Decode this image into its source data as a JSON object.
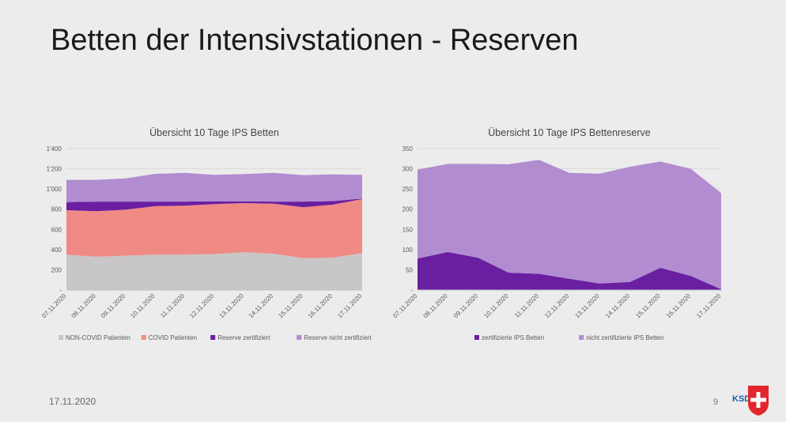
{
  "slide": {
    "title": "Betten der Intensivstationen - Reserven",
    "date": "17.11.2020",
    "page_number": "9",
    "logo_text": "KSDC"
  },
  "colors": {
    "non_covid": "#c9c6c7",
    "covid": "#f08a85",
    "reserve_zert": "#6a1fa1",
    "reserve_nicht": "#b28cd0",
    "grid": "#d9d9d9",
    "axis_text": "#595959"
  },
  "chart_data": [
    {
      "type": "area",
      "stacked": true,
      "title": "Übersicht 10 Tage IPS Betten",
      "xlabel": "",
      "ylabel": "",
      "ylim": [
        0,
        1400
      ],
      "yticks": [
        0,
        200,
        400,
        600,
        800,
        1000,
        1200,
        1400
      ],
      "ytick_labels": [
        "-",
        "200",
        "400",
        "600",
        "800",
        "1'000",
        "1'200",
        "1'400"
      ],
      "grid": true,
      "legend_position": "bottom",
      "categories": [
        "07.11.2020",
        "08.11.2020",
        "09.11.2020",
        "10.11.2020",
        "11.11.2020",
        "12.11.2020",
        "13.11.2020",
        "14.11.2020",
        "15.11.2020",
        "16.11.2020",
        "17.11.2020"
      ],
      "series": [
        {
          "name": "NON-COVID Patienten",
          "color": "#c9c6c7",
          "values": [
            350,
            330,
            340,
            350,
            350,
            355,
            375,
            360,
            315,
            320,
            365
          ]
        },
        {
          "name": "COVID Patienten",
          "color": "#f08a85",
          "values": [
            440,
            450,
            455,
            480,
            485,
            495,
            485,
            495,
            505,
            525,
            535
          ]
        },
        {
          "name": "Reserve zertifiziert",
          "color": "#6a1fa1",
          "values": [
            80,
            95,
            80,
            45,
            40,
            28,
            18,
            20,
            55,
            35,
            5
          ]
        },
        {
          "name": "Reserve nicht zertifiziert",
          "color": "#b28cd0",
          "values": [
            220,
            215,
            230,
            275,
            285,
            262,
            270,
            285,
            262,
            265,
            235
          ]
        }
      ]
    },
    {
      "type": "area",
      "stacked": true,
      "title": "Übersicht 10 Tage IPS Bettenreserve",
      "xlabel": "",
      "ylabel": "",
      "ylim": [
        0,
        350
      ],
      "yticks": [
        0,
        50,
        100,
        150,
        200,
        250,
        300,
        350
      ],
      "ytick_labels": [
        "-",
        "50",
        "100",
        "150",
        "200",
        "250",
        "300",
        "350"
      ],
      "grid": true,
      "legend_position": "bottom",
      "categories": [
        "07.11.2020",
        "08.11.2020",
        "09.11.2020",
        "10.11.2020",
        "11.11.2020",
        "12.11.2020",
        "13.11.2020",
        "14.11.2020",
        "15.11.2020",
        "16.11.2020",
        "17.11.2020"
      ],
      "series": [
        {
          "name": "zertifizierte IPS Betten",
          "color": "#6a1fa1",
          "values": [
            78,
            94,
            80,
            43,
            40,
            28,
            16,
            20,
            55,
            35,
            2
          ]
        },
        {
          "name": "nicht zertifizierte IPS Betten",
          "color": "#b28cd0",
          "values": [
            220,
            218,
            232,
            268,
            282,
            262,
            272,
            285,
            263,
            265,
            238
          ]
        }
      ]
    }
  ]
}
